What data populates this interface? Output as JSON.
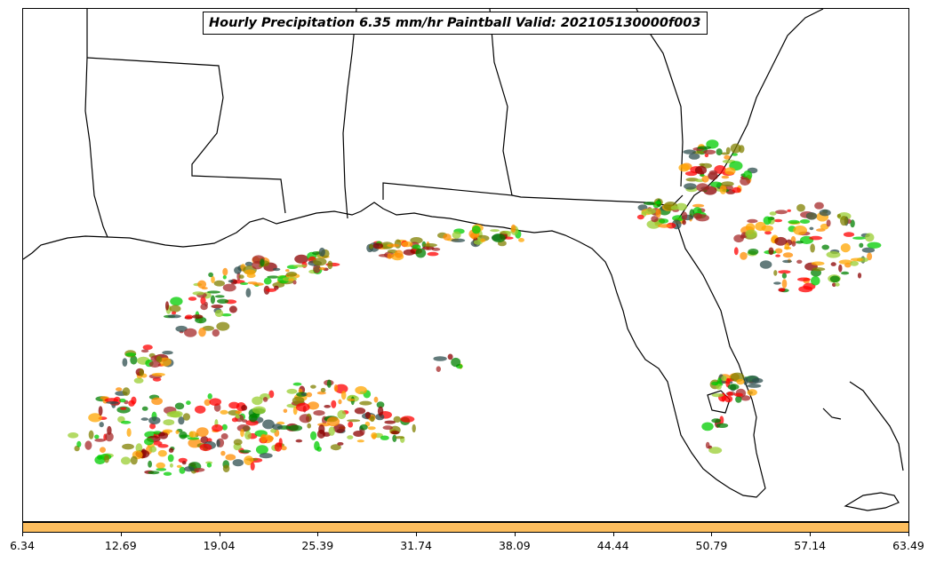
{
  "title": "Hourly Precipitation 6.35 mm/hr Paintball Valid: 202105130000f003",
  "colorbar": {
    "color": "#fdbe5e",
    "min": 6.34,
    "max": 63.49,
    "ticks": [
      "6.34",
      "12.69",
      "19.04",
      "25.39",
      "31.74",
      "38.09",
      "44.44",
      "50.79",
      "57.14",
      "63.49"
    ]
  },
  "ensemble_colors": [
    "#ff0000",
    "#ff8c00",
    "#ffa500",
    "#008000",
    "#00cc00",
    "#808000",
    "#8b0000",
    "#a52a2a",
    "#2f4f4f",
    "#9acd32"
  ]
}
